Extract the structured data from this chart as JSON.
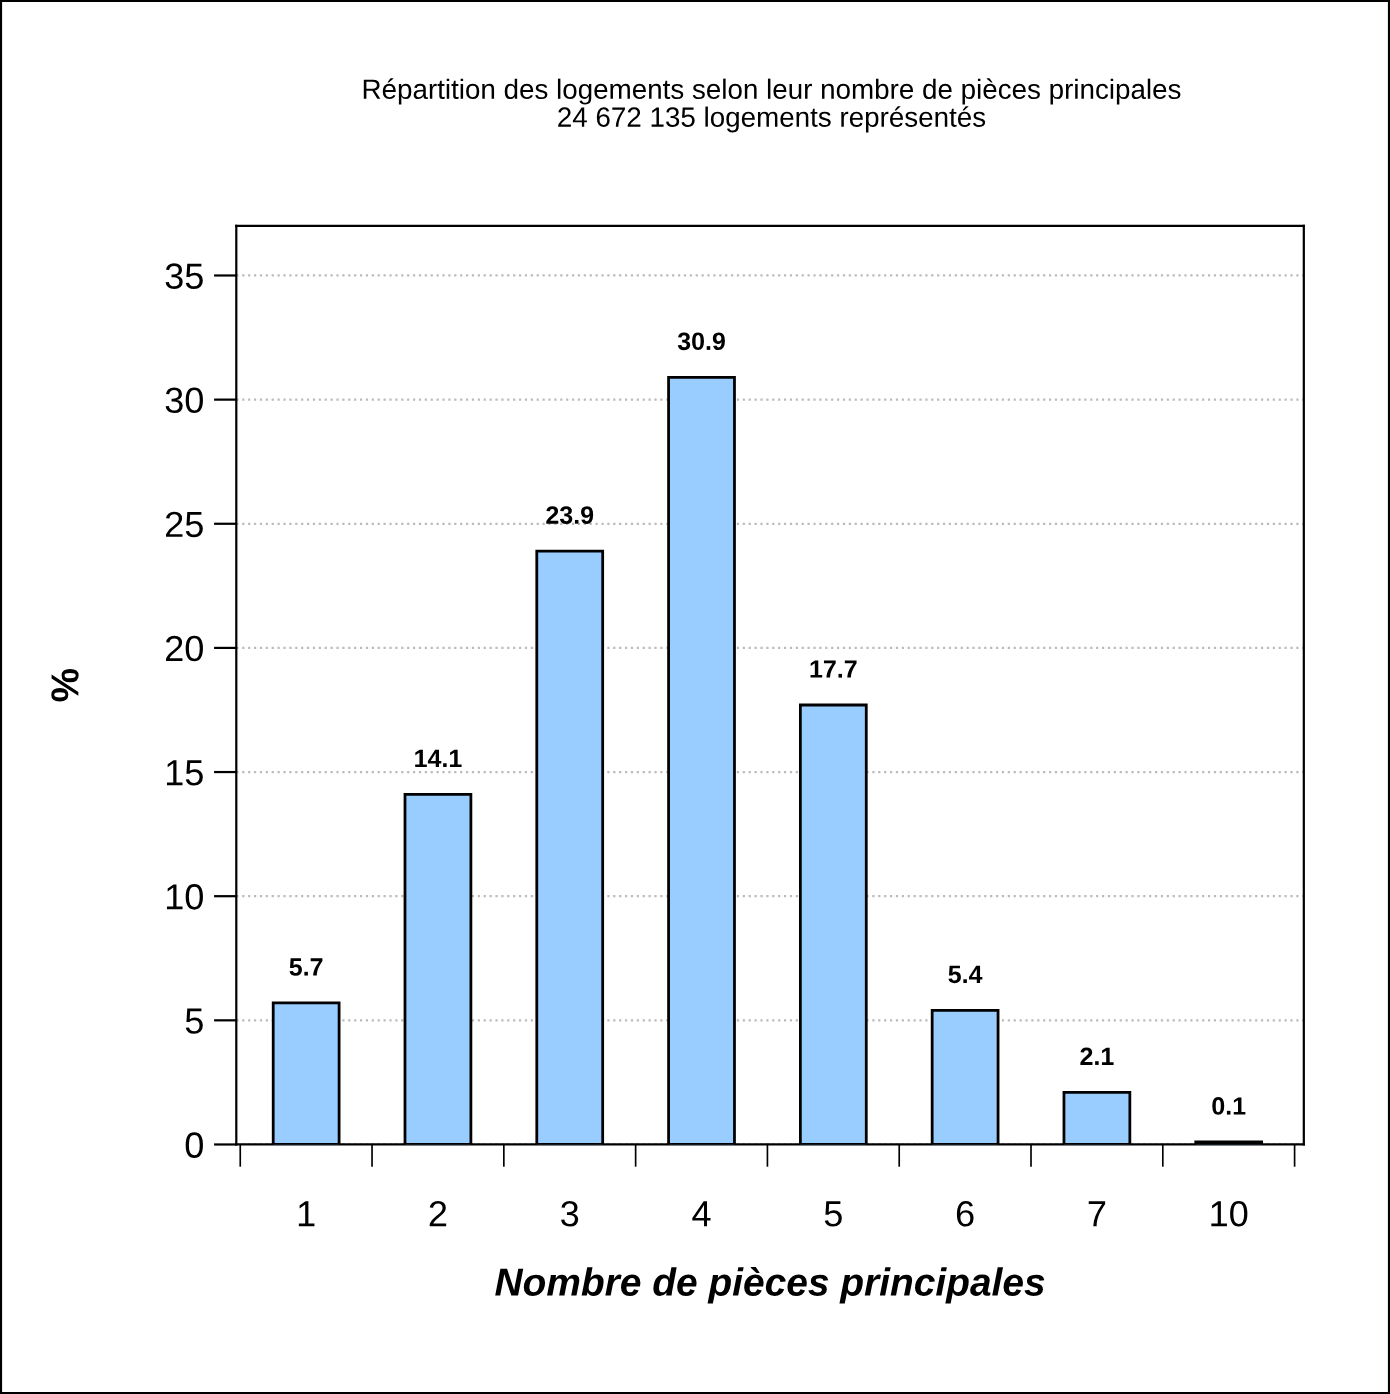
{
  "chart_data": {
    "type": "bar",
    "title": "Répartition des logements selon leur nombre de pièces principales",
    "subtitle": "24 672 135 logements représentés",
    "xlabel": "Nombre de pièces principales",
    "ylabel": "%",
    "categories": [
      "1",
      "2",
      "3",
      "4",
      "5",
      "6",
      "7",
      "10"
    ],
    "values": [
      5.7,
      14.1,
      23.9,
      30.9,
      17.7,
      5.4,
      2.1,
      0.1
    ],
    "color": "#99ccff",
    "data_labels": true,
    "ylim": [
      0,
      37
    ],
    "yticks": [
      0,
      5,
      10,
      15,
      20,
      25,
      30,
      35
    ],
    "grid": "y"
  }
}
